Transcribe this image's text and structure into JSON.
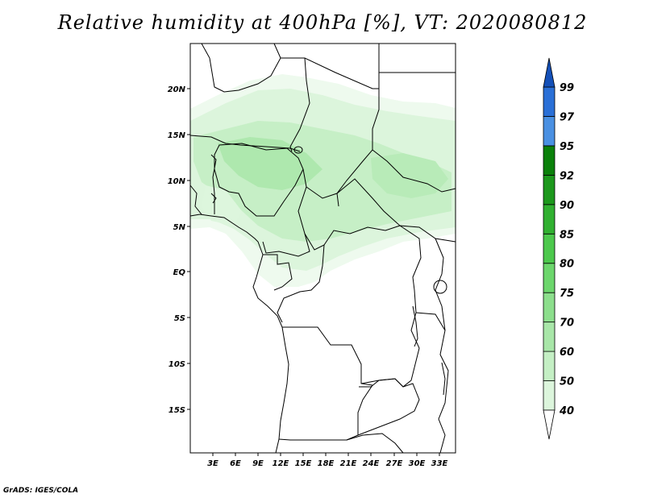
{
  "title": "Relative humidity at 400hPa [%], VT: 2020080812",
  "credit": "GrADS: IGES/COLA",
  "lat_ticks": [
    "20N",
    "15N",
    "10N",
    "5N",
    "EQ",
    "5S",
    "10S",
    "15S"
  ],
  "lon_ticks": [
    "3E",
    "6E",
    "9E",
    "12E",
    "15E",
    "18E",
    "21E",
    "24E",
    "27E",
    "30E",
    "33E"
  ],
  "colorbar": {
    "levels": [
      "40",
      "50",
      "60",
      "70",
      "75",
      "80",
      "85",
      "90",
      "92",
      "95",
      "97",
      "99"
    ],
    "colors": [
      "#f0fbf0",
      "#dcf5dc",
      "#c4efc4",
      "#a8e6a8",
      "#8cde8c",
      "#6cd66c",
      "#4cc84c",
      "#30b030",
      "#1c981c",
      "#0a800a",
      "#4a90e2",
      "#2a6fd6",
      "#1450b8"
    ]
  },
  "shading_colors": {
    "c40": "#eefaee",
    "c50": "#dcf5dc",
    "c60": "#c6efc6",
    "c70": "#aee8ae"
  }
}
